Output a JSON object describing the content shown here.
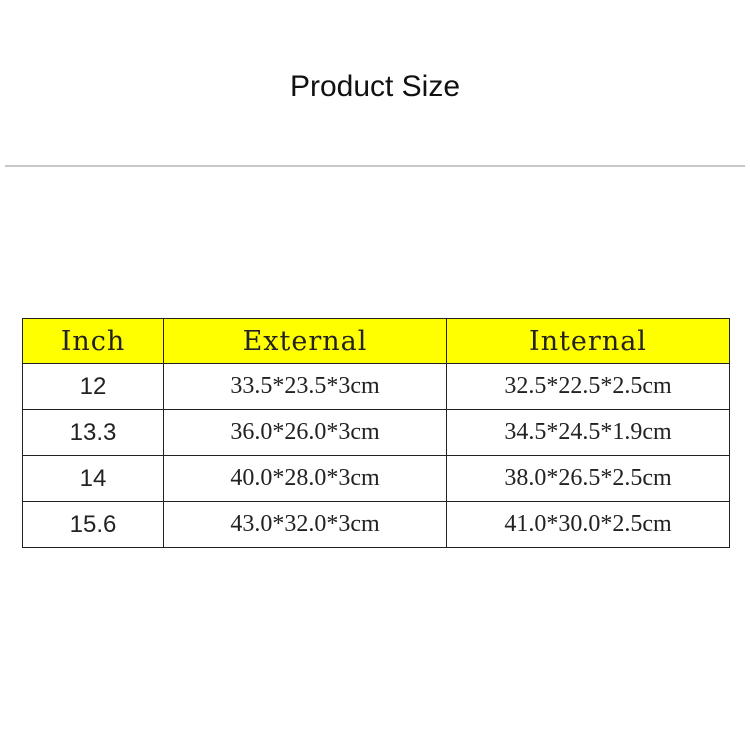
{
  "title": "Product Size",
  "colors": {
    "header_bg": "#ffff00",
    "border": "#222222"
  },
  "table": {
    "headers": [
      "Inch",
      "External",
      "Internal"
    ],
    "rows": [
      [
        "12",
        "33.5*23.5*3cm",
        "32.5*22.5*2.5cm"
      ],
      [
        "13.3",
        "36.0*26.0*3cm",
        "34.5*24.5*1.9cm"
      ],
      [
        "14",
        "40.0*28.0*3cm",
        "38.0*26.5*2.5cm"
      ],
      [
        "15.6",
        "43.0*32.0*3cm",
        "41.0*30.0*2.5cm"
      ]
    ]
  }
}
